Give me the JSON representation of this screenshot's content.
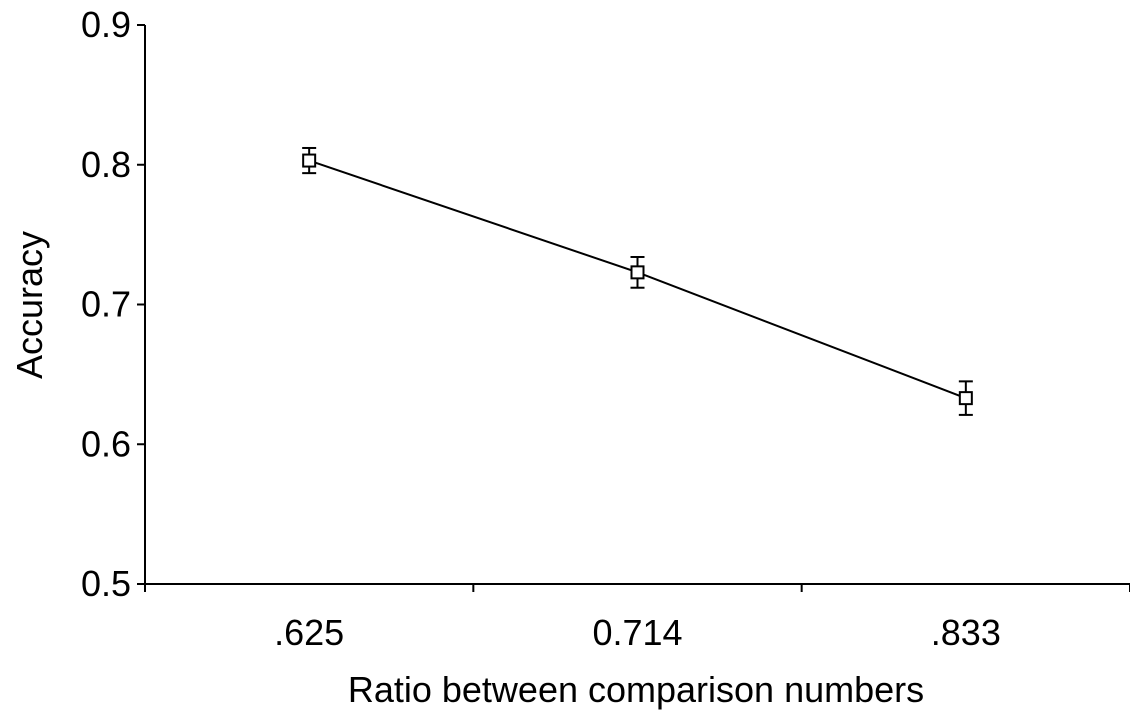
{
  "chart_data": {
    "type": "line",
    "title": "",
    "xlabel": "Ratio between comparison numbers",
    "ylabel": "Accuracy",
    "categories": [
      ".625",
      "0.714",
      ".833"
    ],
    "series": [
      {
        "values": [
          0.803,
          0.723,
          0.633
        ],
        "error": [
          0.009,
          0.011,
          0.012
        ],
        "marker": "open-square",
        "color": "#000000"
      }
    ],
    "ylim": [
      0.5,
      0.9
    ],
    "yticks": [
      0.5,
      0.6,
      0.7,
      0.8,
      0.9
    ],
    "ytick_labels": [
      "0.5",
      "0.6",
      "0.7",
      "0.8",
      "0.9"
    ],
    "grid": false,
    "legend": "none"
  }
}
